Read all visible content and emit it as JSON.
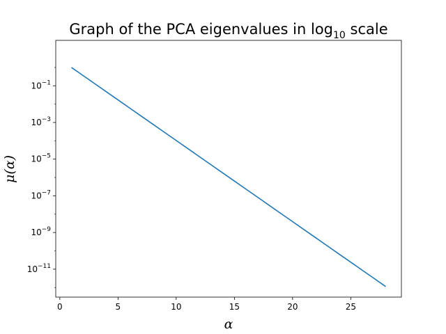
{
  "chart_data": {
    "type": "line",
    "title": "Graph of the PCA eigenvalues in log",
    "title_subscript": "10",
    "title_suffix": " scale",
    "xlabel": "α",
    "ylabel": "μ(α)",
    "xscale": "linear",
    "yscale": "log",
    "xlim": [
      -0.35,
      29.35
    ],
    "ylim": [
      3e-13,
      30
    ],
    "xticks": [
      0,
      5,
      10,
      15,
      20,
      25
    ],
    "yticks": [
      {
        "value": 0.1,
        "base": "10",
        "exp": "−1"
      },
      {
        "value": 0.001,
        "base": "10",
        "exp": "−3"
      },
      {
        "value": 1e-05,
        "base": "10",
        "exp": "−5"
      },
      {
        "value": 1e-07,
        "base": "10",
        "exp": "−7"
      },
      {
        "value": 1e-09,
        "base": "10",
        "exp": "−9"
      },
      {
        "value": 1e-11,
        "base": "10",
        "exp": "−11"
      }
    ],
    "grid": false,
    "series": [
      {
        "color": "#1f77b4",
        "x": [
          1,
          2,
          3,
          4,
          5,
          6,
          7,
          8,
          9,
          10,
          11,
          12,
          13,
          14,
          15,
          16,
          17,
          18,
          19,
          20,
          21,
          22,
          23,
          24,
          25,
          26,
          27,
          28
        ],
        "y": [
          1.0,
          0.361,
          0.1303,
          0.04706,
          0.01699,
          0.006134,
          0.002214,
          0.0007994,
          0.0002886,
          0.0001042,
          3.761e-05,
          1.358e-05,
          4.902e-06,
          1.77e-06,
          6.389e-07,
          2.306e-07,
          8.326e-08,
          3.006e-08,
          1.085e-08,
          3.917e-09,
          1.414e-09,
          5.105e-10,
          1.843e-10,
          6.654e-11,
          2.402e-11,
          8.672e-12,
          3.131e-12,
          1.13e-12
        ]
      }
    ]
  }
}
